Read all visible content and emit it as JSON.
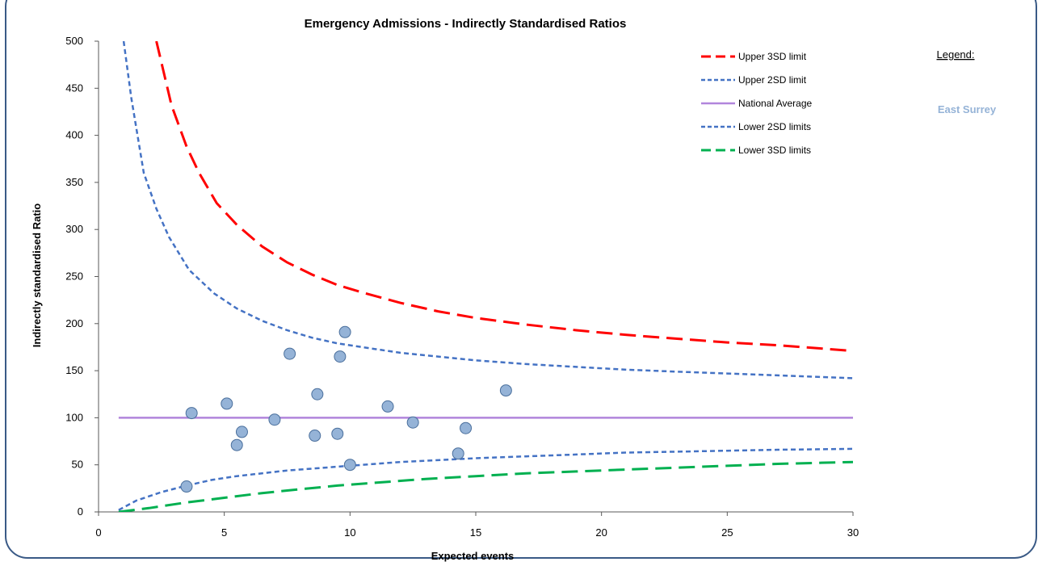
{
  "chart_data": {
    "type": "scatter",
    "title": "Emergency Admissions - Indirectly Standardised Ratios",
    "xlabel": "Expected events",
    "ylabel": "Indirectly standardised Ratio",
    "xlim": [
      0,
      30
    ],
    "ylim": [
      0,
      500
    ],
    "x_ticks": [
      0,
      5,
      10,
      15,
      20,
      25,
      30
    ],
    "y_ticks": [
      0,
      50,
      100,
      150,
      200,
      250,
      300,
      350,
      400,
      450,
      500
    ],
    "grid": false,
    "legend_position": "top-right",
    "series": [
      {
        "name": "Upper 3SD limit",
        "kind": "line",
        "style": "long-dash",
        "color": "#ff0000",
        "x": [
          2.3,
          2.9,
          3.5,
          4.0,
          4.7,
          5.5,
          6.5,
          7.5,
          8.5,
          9.5,
          10.5,
          12.0,
          13.5,
          15.0,
          17.0,
          19.0,
          21.0,
          23.0,
          25.0,
          27.0,
          30.0
        ],
        "y": [
          500,
          432,
          388,
          360,
          328,
          305,
          282,
          265,
          252,
          241,
          233,
          222,
          213,
          206,
          199,
          193,
          188,
          184,
          180,
          177,
          171
        ]
      },
      {
        "name": "Upper 2SD limit",
        "kind": "line",
        "style": "short-dash",
        "color": "#4472c4",
        "x": [
          1.0,
          1.3,
          1.8,
          2.3,
          2.8,
          3.6,
          4.6,
          5.5,
          6.5,
          7.5,
          8.5,
          9.5,
          10.5,
          12.0,
          13.5,
          15.0,
          17.0,
          19.0,
          21.0,
          23.0,
          25.0,
          27.0,
          30.0
        ],
        "y": [
          500,
          440,
          360,
          322,
          292,
          257,
          232,
          216,
          203,
          193,
          185,
          179,
          175,
          169,
          165,
          161,
          157,
          154,
          151,
          149,
          147,
          145,
          142
        ]
      },
      {
        "name": "National Average",
        "kind": "line",
        "style": "solid",
        "color": "#b185dc",
        "x": [
          0.8,
          30.0
        ],
        "y": [
          100,
          100
        ]
      },
      {
        "name": "Lower 2SD limits",
        "kind": "line",
        "style": "short-dash",
        "color": "#4472c4",
        "x": [
          0.8,
          1.5,
          2.5,
          3.5,
          4.5,
          5.5,
          6.5,
          7.5,
          8.5,
          9.5,
          10.5,
          12.0,
          13.5,
          15.0,
          17.0,
          19.0,
          21.0,
          23.0,
          25.0,
          27.0,
          30.0
        ],
        "y": [
          2,
          12,
          21,
          28,
          34,
          38,
          41,
          44,
          46,
          48,
          50,
          53,
          55,
          57,
          59,
          61,
          63,
          64,
          65,
          66,
          67
        ]
      },
      {
        "name": "Lower 3SD limits",
        "kind": "line",
        "style": "long-dash",
        "color": "#00b050",
        "x": [
          0.8,
          2.0,
          3.5,
          5.0,
          6.5,
          8.0,
          9.5,
          11.0,
          13.0,
          15.0,
          17.0,
          19.0,
          21.0,
          23.0,
          25.0,
          27.0,
          30.0
        ],
        "y": [
          0,
          4,
          10,
          15,
          20,
          24,
          28,
          31,
          35,
          38,
          41,
          43,
          45,
          47,
          49,
          51,
          53
        ]
      },
      {
        "name": "",
        "kind": "points",
        "color": "#95b3d7",
        "edge_color": "#4a6f9c",
        "x": [
          3.5,
          3.7,
          5.1,
          5.5,
          5.7,
          7.0,
          7.6,
          8.6,
          8.7,
          9.5,
          9.6,
          9.8,
          10.0,
          11.5,
          12.5,
          14.3,
          14.6,
          16.2
        ],
        "y": [
          27,
          105,
          115,
          71,
          85,
          98,
          168,
          81,
          125,
          83,
          165,
          191,
          50,
          112,
          95,
          62,
          89,
          129
        ]
      }
    ]
  },
  "side_legend": {
    "title": "Legend:",
    "item": "East Surrey",
    "item_color": "#95b3d7"
  }
}
